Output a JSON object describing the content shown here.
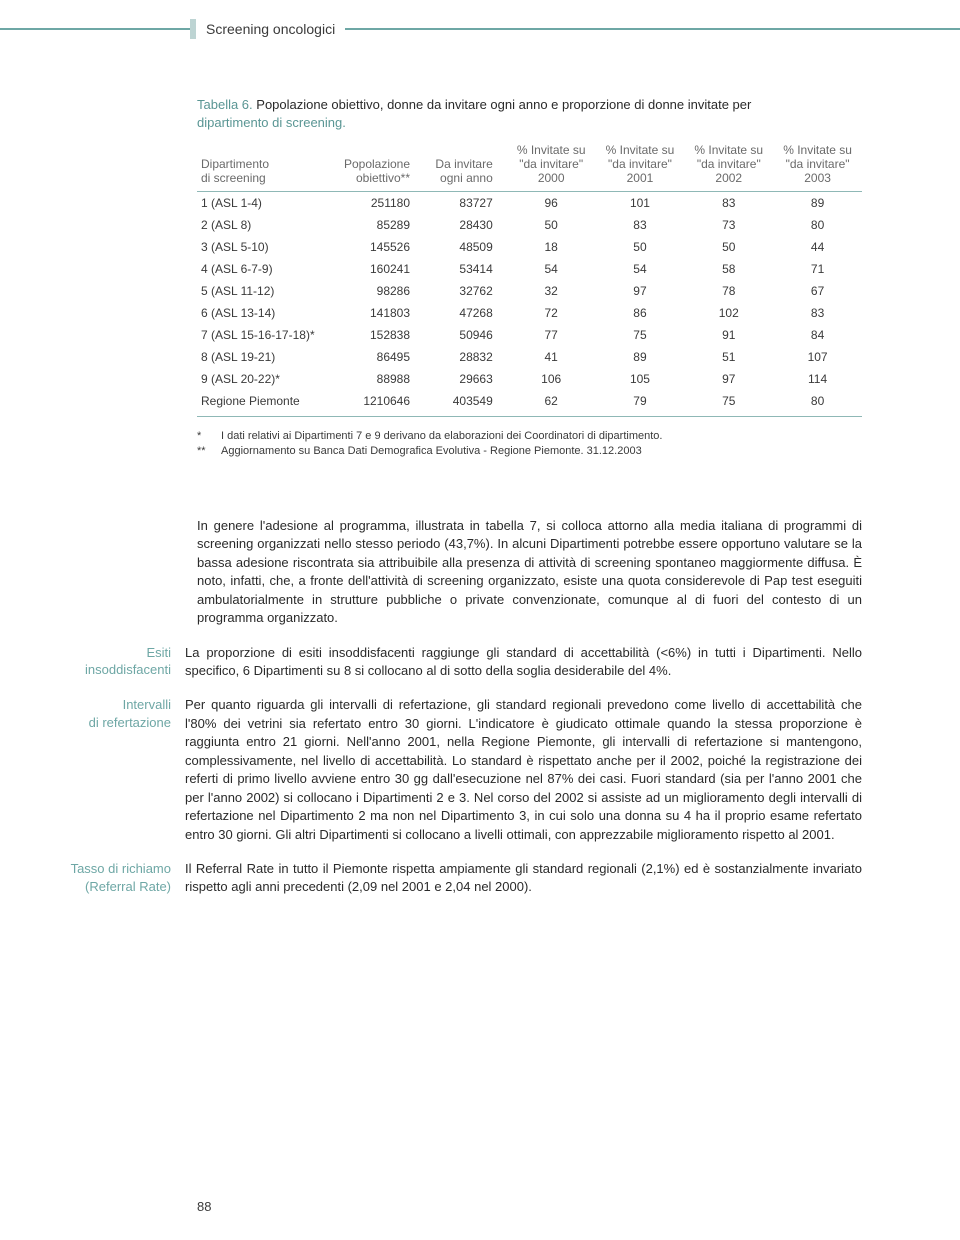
{
  "header": {
    "title": "Screening oncologici"
  },
  "table_caption": {
    "prefix": "Tabella 6.",
    "text": " Popolazione obiettivo, donne da invitare ogni anno e proporzione di donne invitate per ",
    "text2": "dipartimento di screening."
  },
  "table": {
    "columns": [
      "Dipartimento\ndi screening",
      "Popolazione\nobiettivo**",
      "Da invitare\nogni anno",
      "% Invitate su\n\"da invitare\"\n2000",
      "% Invitate su\n\"da invitare\"\n2001",
      "% Invitate su\n\"da invitare\"\n2002",
      "% Invitate su\n\"da invitare\"\n2003"
    ],
    "rows": [
      [
        "1 (ASL 1-4)",
        "251180",
        "83727",
        "96",
        "101",
        "83",
        "89"
      ],
      [
        "2 (ASL 8)",
        "85289",
        "28430",
        "50",
        "83",
        "73",
        "80"
      ],
      [
        "3 (ASL 5-10)",
        "145526",
        "48509",
        "18",
        "50",
        "50",
        "44"
      ],
      [
        "4 (ASL 6-7-9)",
        "160241",
        "53414",
        "54",
        "54",
        "58",
        "71"
      ],
      [
        "5 (ASL 11-12)",
        "98286",
        "32762",
        "32",
        "97",
        "78",
        "67"
      ],
      [
        "6 (ASL 13-14)",
        "141803",
        "47268",
        "72",
        "86",
        "102",
        "83"
      ],
      [
        "7 (ASL 15-16-17-18)*",
        "152838",
        "50946",
        "77",
        "75",
        "91",
        "84"
      ],
      [
        "8 (ASL 19-21)",
        "86495",
        "28832",
        "41",
        "89",
        "51",
        "107"
      ],
      [
        "9 (ASL 20-22)*",
        "88988",
        "29663",
        "106",
        "105",
        "97",
        "114"
      ],
      [
        "Regione Piemonte",
        "1210646",
        "403549",
        "62",
        "79",
        "75",
        "80"
      ]
    ]
  },
  "footnotes": {
    "n1_star": "*",
    "n1": "I dati relativi ai Dipartimenti 7 e 9 derivano da elaborazioni dei Coordinatori di dipartimento.",
    "n2_star": "**",
    "n2": "Aggiornamento su Banca Dati Demografica Evolutiva - Regione Piemonte. 31.12.2003"
  },
  "paragraphs": {
    "intro": "In genere l'adesione al programma, illustrata in tabella 7, si colloca attorno alla media italiana di programmi di screening organizzati nello stesso periodo (43,7%). In alcuni Dipartimenti potrebbe essere opportuno valutare se la bassa adesione riscontrata sia attribuibile alla presenza di attività di screening spontaneo maggiormente diffusa. È noto, infatti, che, a fronte dell'attività di screening organizzato, esiste una quota considerevole di Pap test eseguiti ambulatorialmente in strutture pubbliche o private convenzionate, comunque al di fuori del contesto di un programma organizzato.",
    "esiti_label_1": "Esiti",
    "esiti_label_2": "insoddisfacenti",
    "esiti": "La proporzione di esiti insoddisfacenti raggiunge gli standard di accettabilità (<6%) in tutti i Dipartimenti. Nello specifico, 6 Dipartimenti su 8 si collocano al di sotto della soglia desiderabile del 4%.",
    "intervalli_label_1": "Intervalli",
    "intervalli_label_2": "di refertazione",
    "intervalli": "Per quanto riguarda gli intervalli di refertazione, gli standard regionali prevedono come livello di accettabilità che l'80% dei vetrini sia refertato entro 30 giorni. L'indicatore è giudicato ottimale quando la stessa proporzione è raggiunta entro 21 giorni. Nell'anno 2001, nella Regione Piemonte, gli intervalli di refertazione si mantengono, complessivamente, nel livello di accettabilità. Lo standard è rispettato anche per il 2002, poiché la registrazione dei referti di primo livello avviene entro 30 gg dall'esecuzione nel 87% dei casi. Fuori standard (sia per l'anno 2001 che per l'anno 2002) si collocano i Dipartimenti 2 e 3. Nel corso del 2002 si assiste ad un miglioramento degli intervalli di refertazione nel Dipartimento 2 ma non nel Dipartimento 3, in cui solo una donna su 4 ha il proprio esame refertato entro 30 giorni. Gli altri Dipartimenti si collocano a livelli ottimali, con apprezzabile miglioramento rispetto al 2001.",
    "tasso_label_1": "Tasso di richiamo",
    "tasso_label_2": "(Referral Rate)",
    "tasso": "Il Referral Rate in tutto il Piemonte rispetta ampiamente gli standard regionali (2,1%) ed è sostanzialmente invariato rispetto agli anni precedenti (2,09 nel 2001 e 2,04 nel 2000)."
  },
  "page_number": "88"
}
